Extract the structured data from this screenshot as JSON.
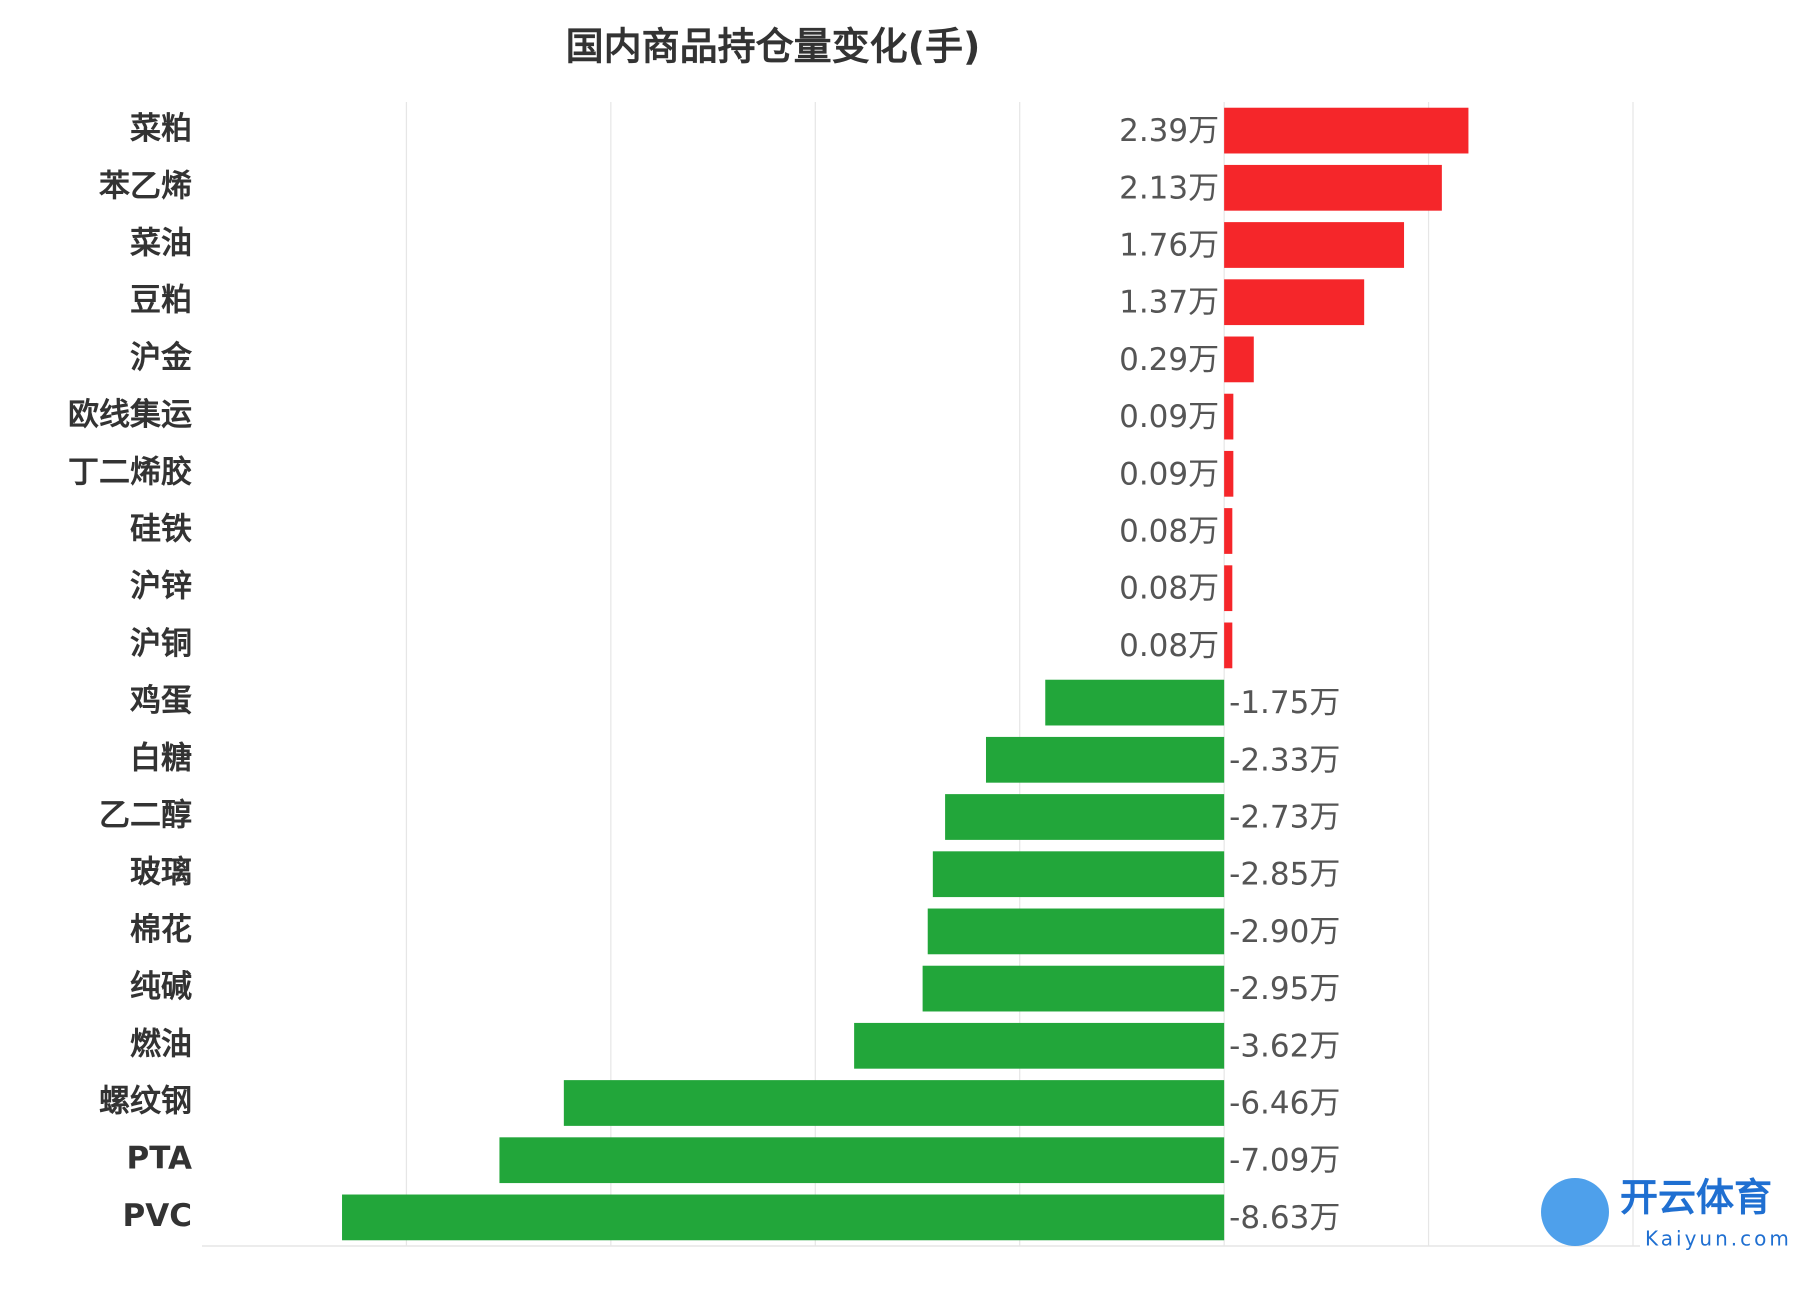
{
  "chart_data": {
    "type": "barh",
    "title": "国内商品持仓量变化(手)",
    "categories": [
      "菜粕",
      "苯乙烯",
      "菜油",
      "豆粕",
      "沪金",
      "欧线集运",
      "丁二烯胶",
      "硅铁",
      "沪锌",
      "沪铜",
      "鸡蛋",
      "白糖",
      "乙二醇",
      "玻璃",
      "棉花",
      "纯碱",
      "燃油",
      "螺纹钢",
      "PTA",
      "PVC"
    ],
    "values": [
      2.39,
      2.13,
      1.76,
      1.37,
      0.29,
      0.09,
      0.09,
      0.08,
      0.08,
      0.08,
      -1.75,
      -2.33,
      -2.73,
      -2.85,
      -2.9,
      -2.95,
      -3.62,
      -6.46,
      -7.09,
      -8.63
    ],
    "value_labels": [
      "2.39万",
      "2.13万",
      "1.76万",
      "1.37万",
      "0.29万",
      "0.09万",
      "0.09万",
      "0.08万",
      "0.08万",
      "0.08万",
      "-1.75万",
      "-2.33万",
      "-2.73万",
      "-2.85万",
      "-2.90万",
      "-2.95万",
      "-3.62万",
      "-6.46万",
      "-7.09万",
      "-8.63万"
    ],
    "positive_color": "#f5262a",
    "negative_color": "#22a63a",
    "xlim": [
      -10,
      4
    ],
    "xticks": [
      -8,
      -6,
      -4,
      -2,
      0,
      2,
      4
    ],
    "grid": true
  },
  "watermark": {
    "name": "开云体育",
    "url": "Kaiyun.com"
  }
}
